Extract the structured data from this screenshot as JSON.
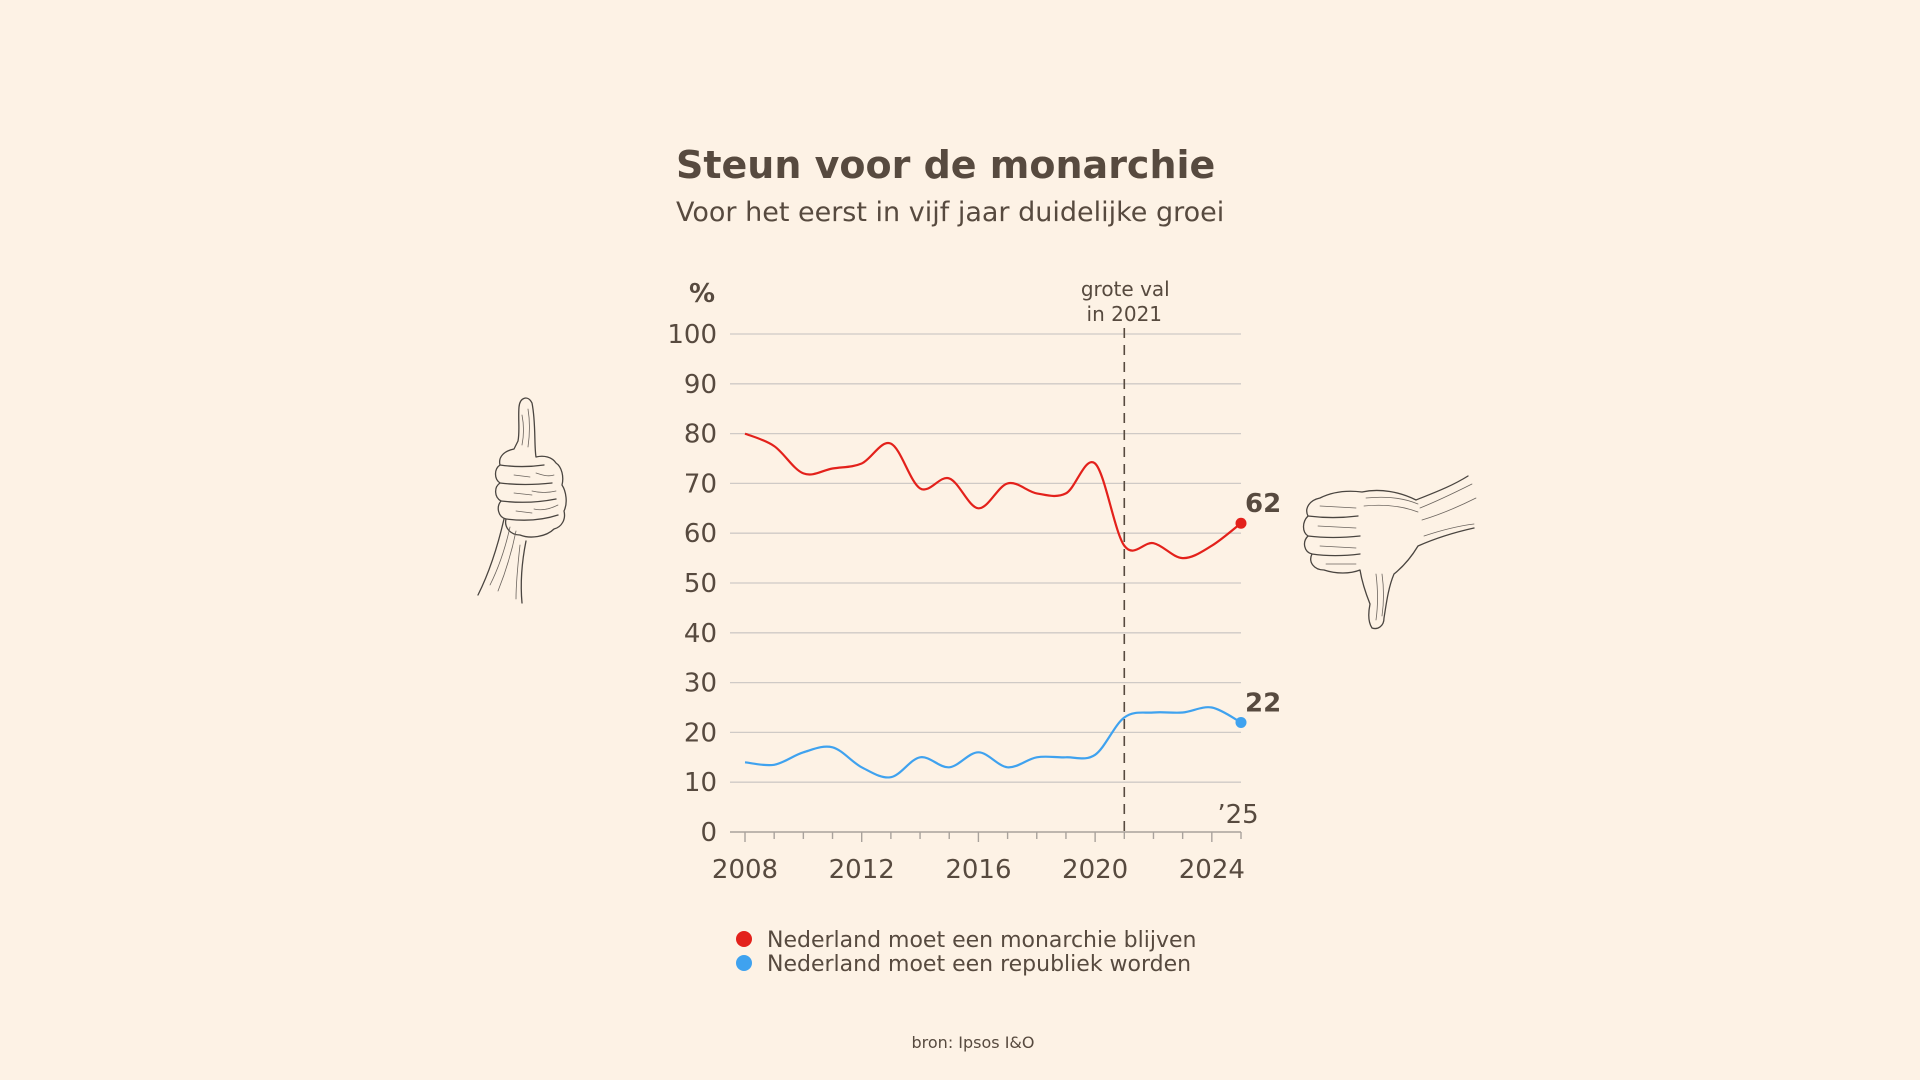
{
  "chart_data": {
    "type": "line",
    "title": "Steun voor de monarchie",
    "subtitle": "Voor het eerst in vijf jaar duidelijke groei",
    "ylabel": "%",
    "ylim": [
      0,
      100
    ],
    "yticks": [
      0,
      10,
      20,
      30,
      40,
      50,
      60,
      70,
      80,
      90,
      100
    ],
    "xlim": [
      2008,
      2025
    ],
    "xticks": [
      2008,
      2012,
      2016,
      2020,
      2024
    ],
    "x_end_label": "’25",
    "annotation": {
      "x": 2021,
      "text_line1": "grote val",
      "text_line2": "in 2021"
    },
    "series": [
      {
        "name": "Nederland moet een monarchie blijven",
        "color": "#e3211b",
        "end_label": "62",
        "points": [
          [
            2008,
            80
          ],
          [
            2009,
            77.5
          ],
          [
            2010,
            72
          ],
          [
            2011,
            73
          ],
          [
            2012,
            74
          ],
          [
            2013,
            78
          ],
          [
            2014,
            69
          ],
          [
            2015,
            71
          ],
          [
            2016,
            65
          ],
          [
            2017,
            70
          ],
          [
            2018,
            68
          ],
          [
            2019,
            68
          ],
          [
            2020,
            74
          ],
          [
            2021,
            57.5
          ],
          [
            2022,
            58
          ],
          [
            2023,
            55
          ],
          [
            2024,
            57.5
          ],
          [
            2025,
            62
          ]
        ]
      },
      {
        "name": "Nederland moet een republiek worden",
        "color": "#3fa2ef",
        "end_label": "22",
        "points": [
          [
            2008,
            14
          ],
          [
            2009,
            13.5
          ],
          [
            2010,
            16
          ],
          [
            2011,
            17
          ],
          [
            2012,
            13
          ],
          [
            2013,
            11
          ],
          [
            2014,
            15
          ],
          [
            2015,
            13
          ],
          [
            2016,
            16
          ],
          [
            2017,
            13
          ],
          [
            2018,
            15
          ],
          [
            2019,
            15
          ],
          [
            2020,
            15.5
          ],
          [
            2021,
            23
          ],
          [
            2022,
            24
          ],
          [
            2023,
            24
          ],
          [
            2024,
            25
          ],
          [
            2025,
            22
          ]
        ]
      }
    ]
  },
  "source": "bron: Ipsos I&O",
  "icons": {
    "left": "thumbs-up-icon",
    "right": "thumbs-down-icon"
  }
}
